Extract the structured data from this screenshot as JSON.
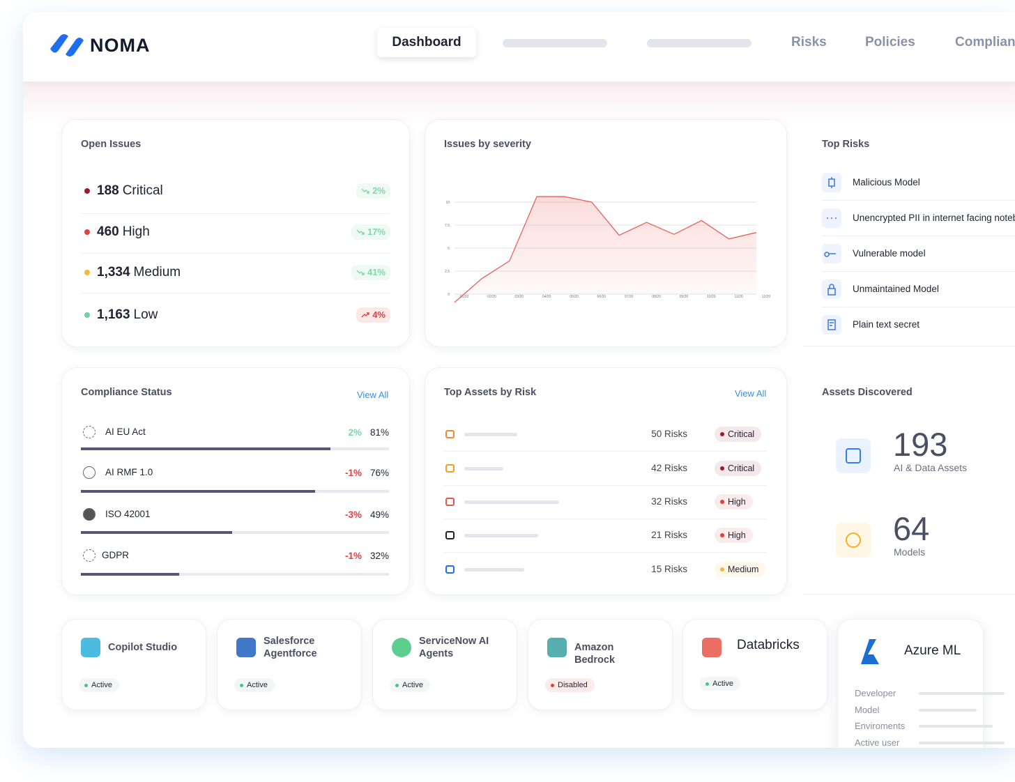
{
  "nav": {
    "brand": "NOMA",
    "tabs": [
      "Dashboard",
      "Risks",
      "Policies",
      "Compliance"
    ]
  },
  "open_issues": {
    "title": "Open Issues",
    "items": [
      {
        "count": "188",
        "label": "Critical",
        "change": "2%",
        "color": "#9b1c2e",
        "trend": "down"
      },
      {
        "count": "460",
        "label": "High",
        "change": "17%",
        "color": "#e53e3e",
        "trend": "down"
      },
      {
        "count": "1,334",
        "label": "Medium",
        "change": "41%",
        "color": "#f6b73c",
        "trend": "down"
      },
      {
        "count": "1,163",
        "label": "Low",
        "change": "4%",
        "color": "#6ed3a3",
        "trend": "up"
      }
    ]
  },
  "chart_data": {
    "type": "line",
    "title": "Issues by severity",
    "categories": [
      "01/20",
      "02/20",
      "03/20",
      "04/20",
      "05/20",
      "06/20",
      "07/20",
      "08/20",
      "09/20",
      "10/20",
      "11/20",
      "12/20"
    ],
    "values": [
      -0.9,
      1.7,
      3.6,
      10.6,
      10.6,
      10,
      6.4,
      7.8,
      6.5,
      8,
      6,
      6.7
    ],
    "color": "#e8625a",
    "ylim": [
      -1,
      11
    ],
    "yticks": [
      0,
      2.5,
      5,
      7.5,
      10
    ],
    "grid": true
  },
  "top_risks": {
    "title": "Top Risks",
    "items": [
      "Malicious Model",
      "Unencrypted PII in internet facing notebook",
      "Vulnerable model",
      "Unmaintained Model",
      "Plain text secret"
    ]
  },
  "compliance": {
    "title": "Compliance Status",
    "link": "View All",
    "items": [
      {
        "name": "AI EU Act",
        "change": "2%",
        "trend": "up",
        "value": 81,
        "value_label": "81%"
      },
      {
        "name": "AI RMF 1.0",
        "change": "-1%",
        "trend": "down",
        "value": 76,
        "value_label": "76%"
      },
      {
        "name": "ISO 42001",
        "change": "-3%",
        "trend": "down",
        "value": 49,
        "value_label": "49%"
      },
      {
        "name": "GDPR",
        "change": "-1%",
        "trend": "down",
        "value": 32,
        "value_label": "32%"
      }
    ]
  },
  "top_assets": {
    "title": "Top Assets by Risk",
    "link": "View All",
    "items": [
      {
        "risks": "50 Risks",
        "severity": "Critical",
        "color": "#9b1c2e"
      },
      {
        "risks": "42 Risks",
        "severity": "Critical",
        "color": "#9b1c2e"
      },
      {
        "risks": "32 Risks",
        "severity": "High",
        "color": "#e53e3e"
      },
      {
        "risks": "21 Risks",
        "severity": "High",
        "color": "#e53e3e"
      },
      {
        "risks": "15 Risks",
        "severity": "Medium",
        "color": "#f6b73c"
      }
    ]
  },
  "assets_discovered": {
    "title": "Assets Discovered",
    "items": [
      {
        "count": "193",
        "label": "AI & Data Assets"
      },
      {
        "count": "64",
        "label": "Models"
      }
    ]
  },
  "integrations": [
    {
      "name": "Copilot Studio",
      "status": "Active",
      "status_color": "#3ec98a"
    },
    {
      "name": "Salesforce Agentforce",
      "status": "Active",
      "status_color": "#3ec98a"
    },
    {
      "name": "ServiceNow AI Agents",
      "status": "Active",
      "status_color": "#3ec98a"
    },
    {
      "name": "Amazon Bedrock",
      "status": "Disabled",
      "status_color": "#e53e3e"
    },
    {
      "name": "Databricks",
      "status": "Active",
      "status_color": "#3ec98a"
    }
  ],
  "azure": {
    "name": "Azure ML",
    "fields": [
      "Developer",
      "Model",
      "Enviroments",
      "Active user"
    ]
  }
}
